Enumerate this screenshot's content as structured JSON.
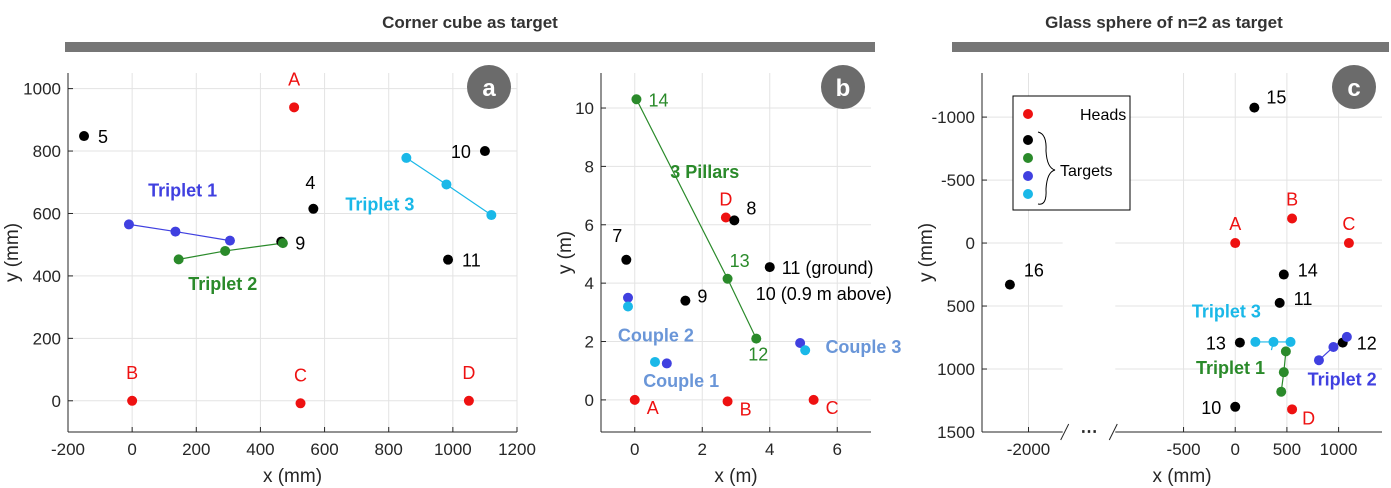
{
  "headers": {
    "left": "Corner cube as target",
    "right": "Glass sphere of n=2 as target"
  },
  "colors": {
    "red": "#ee1111",
    "black": "#000000",
    "green": "#2a8a2a",
    "blue": "#4040e0",
    "cyan": "#1ab8e8",
    "couple": "#6a96d8",
    "header_bar": "#767676",
    "badge": "#6b6b6b"
  },
  "chart_data": [
    {
      "type": "scatter",
      "panel": "a",
      "xlabel": "x (mm)",
      "ylabel": "y (mm)",
      "xlim": [
        -200,
        1200
      ],
      "ylim": [
        -100,
        1050
      ],
      "xticks": [
        -200,
        0,
        200,
        400,
        600,
        800,
        1000,
        1200
      ],
      "yticks": [
        0,
        200,
        400,
        600,
        800,
        1000
      ],
      "grid": true,
      "points": [
        {
          "label": "A",
          "x": 505,
          "y": 940,
          "color": "red",
          "lx": 0,
          "ly": -22,
          "anchor": "middle"
        },
        {
          "label": "B",
          "x": 0,
          "y": 0,
          "color": "red",
          "lx": 0,
          "ly": -22,
          "anchor": "middle"
        },
        {
          "label": "C",
          "x": 525,
          "y": -8,
          "color": "red",
          "lx": 0,
          "ly": -22,
          "anchor": "middle"
        },
        {
          "label": "D",
          "x": 1050,
          "y": 0,
          "color": "red",
          "lx": 0,
          "ly": -22,
          "anchor": "middle"
        },
        {
          "label": "5",
          "x": -150,
          "y": 848,
          "color": "black",
          "lx": 14,
          "ly": 7,
          "anchor": "start"
        },
        {
          "label": "4",
          "x": 565,
          "y": 615,
          "color": "black",
          "lx": -8,
          "ly": -20,
          "anchor": "start"
        },
        {
          "label": "9",
          "x": 465,
          "y": 510,
          "color": "black",
          "lx": 14,
          "ly": 8,
          "anchor": "start"
        },
        {
          "label": "10",
          "x": 1100,
          "y": 800,
          "color": "black",
          "lx": -14,
          "ly": 7,
          "anchor": "end"
        },
        {
          "label": "11",
          "x": 985,
          "y": 452,
          "color": "black",
          "lx": 14,
          "ly": 7,
          "anchor": "start"
        },
        {
          "label": "",
          "x": -10,
          "y": 565,
          "color": "blue"
        },
        {
          "label": "",
          "x": 135,
          "y": 542,
          "color": "blue"
        },
        {
          "label": "",
          "x": 305,
          "y": 513,
          "color": "blue"
        },
        {
          "label": "",
          "x": 145,
          "y": 453,
          "color": "green"
        },
        {
          "label": "",
          "x": 290,
          "y": 480,
          "color": "green"
        },
        {
          "label": "",
          "x": 470,
          "y": 505,
          "color": "green"
        },
        {
          "label": "",
          "x": 855,
          "y": 778,
          "color": "cyan"
        },
        {
          "label": "",
          "x": 980,
          "y": 693,
          "color": "cyan"
        },
        {
          "label": "",
          "x": 1120,
          "y": 595,
          "color": "cyan"
        }
      ],
      "lines": [
        {
          "color": "blue",
          "x": [
            -10,
            135,
            305
          ],
          "y": [
            565,
            542,
            513
          ]
        },
        {
          "color": "green",
          "x": [
            145,
            290,
            470
          ],
          "y": [
            453,
            480,
            505
          ]
        },
        {
          "color": "cyan",
          "x": [
            855,
            980,
            1120
          ],
          "y": [
            778,
            693,
            595
          ]
        }
      ],
      "annotations": [
        {
          "text": "Triplet 1",
          "x": 50,
          "y": 655,
          "color": "blue",
          "anchor": "start"
        },
        {
          "text": "Triplet 2",
          "x": 175,
          "y": 355,
          "color": "green",
          "anchor": "start"
        },
        {
          "text": "Triplet 3",
          "x": 665,
          "y": 610,
          "color": "cyan",
          "anchor": "start"
        }
      ]
    },
    {
      "type": "scatter",
      "panel": "b",
      "xlabel": "x (m)",
      "ylabel": "y (m)",
      "xlim": [
        -1,
        7
      ],
      "ylim": [
        -1.1,
        11.2
      ],
      "xticks": [
        0,
        2,
        4,
        6
      ],
      "yticks": [
        0,
        2,
        4,
        6,
        8,
        10
      ],
      "grid": true,
      "points": [
        {
          "label": "A",
          "x": 0,
          "y": 0,
          "color": "red",
          "lx": 12,
          "ly": 14,
          "anchor": "start"
        },
        {
          "label": "B",
          "x": 2.75,
          "y": -0.05,
          "color": "red",
          "lx": 12,
          "ly": 14,
          "anchor": "start"
        },
        {
          "label": "C",
          "x": 5.3,
          "y": 0,
          "color": "red",
          "lx": 12,
          "ly": 14,
          "anchor": "start"
        },
        {
          "label": "D",
          "x": 2.7,
          "y": 6.25,
          "color": "red",
          "lx": 0,
          "ly": -12,
          "anchor": "middle"
        },
        {
          "label": "7",
          "x": -0.25,
          "y": 4.8,
          "color": "black",
          "lx": -4,
          "ly": -18,
          "anchor": "end"
        },
        {
          "label": "8",
          "x": 2.95,
          "y": 6.15,
          "color": "black",
          "lx": 12,
          "ly": -6,
          "anchor": "start"
        },
        {
          "label": "9",
          "x": 1.5,
          "y": 3.4,
          "color": "black",
          "lx": 12,
          "ly": 2,
          "anchor": "start"
        },
        {
          "label": "11 (ground)",
          "x": 4,
          "y": 4.55,
          "color": "black",
          "lx": 12,
          "ly": 7,
          "anchor": "start"
        },
        {
          "label": "10 (0.9 m above)",
          "x": 4,
          "y": 4.55,
          "color": "black",
          "lx": -14,
          "ly": 33,
          "anchor": "start",
          "nodot": true
        },
        {
          "label": "14",
          "x": 0.05,
          "y": 10.3,
          "color": "green",
          "lx": 12,
          "ly": 7,
          "anchor": "start"
        },
        {
          "label": "13",
          "x": 2.75,
          "y": 4.15,
          "color": "green",
          "lx": 2,
          "ly": -12,
          "anchor": "start"
        },
        {
          "label": "12",
          "x": 3.6,
          "y": 2.1,
          "color": "green",
          "lx": -8,
          "ly": 22,
          "anchor": "start"
        },
        {
          "label": "",
          "x": -0.2,
          "y": 3.5,
          "color": "blue"
        },
        {
          "label": "",
          "x": -0.2,
          "y": 3.2,
          "color": "cyan"
        },
        {
          "label": "",
          "x": 0.6,
          "y": 1.3,
          "color": "cyan"
        },
        {
          "label": "",
          "x": 0.95,
          "y": 1.25,
          "color": "blue"
        },
        {
          "label": "",
          "x": 4.9,
          "y": 1.95,
          "color": "blue"
        },
        {
          "label": "",
          "x": 5.05,
          "y": 1.7,
          "color": "cyan"
        }
      ],
      "lines": [
        {
          "color": "green",
          "x": [
            0.05,
            2.75,
            3.6
          ],
          "y": [
            10.3,
            4.15,
            2.1
          ]
        }
      ],
      "annotations": [
        {
          "text": "3 Pillars",
          "x": 1.05,
          "y": 7.6,
          "color": "green",
          "anchor": "start"
        },
        {
          "text": "Couple 2",
          "x": -0.5,
          "y": 2.0,
          "color": "couple",
          "anchor": "start"
        },
        {
          "text": "Couple 1",
          "x": 0.25,
          "y": 0.45,
          "color": "couple",
          "anchor": "start"
        },
        {
          "text": "Couple 3",
          "x": 5.65,
          "y": 1.6,
          "color": "couple",
          "anchor": "start"
        }
      ]
    },
    {
      "type": "scatter",
      "panel": "c",
      "xlabel": "x (mm)",
      "ylabel": "y (mm)",
      "xlim": [
        -2450,
        1420
      ],
      "ylim": [
        -1350,
        1500
      ],
      "yreversed": true,
      "xticks": [
        -2000,
        -500,
        0,
        500,
        1000
      ],
      "yticks": [
        -1000,
        -500,
        0,
        500,
        1000,
        1500
      ],
      "ytick_labels": [
        "-1000",
        "-500",
        "0",
        "500",
        "1000",
        "1500"
      ],
      "axis_break_label": "⋯",
      "grid": true,
      "legend": {
        "placement": "top-left",
        "heads": "Heads",
        "targets": "Targets",
        "heads_color": "red",
        "target_colors": [
          "black",
          "green",
          "blue",
          "cyan"
        ]
      },
      "points": [
        {
          "label": "A",
          "x": 0,
          "y": 0,
          "color": "red",
          "lx": 0,
          "ly": -13,
          "anchor": "middle"
        },
        {
          "label": "B",
          "x": 550,
          "y": -195,
          "color": "red",
          "lx": 0,
          "ly": -13,
          "anchor": "middle"
        },
        {
          "label": "C",
          "x": 1100,
          "y": 0,
          "color": "red",
          "lx": 0,
          "ly": -13,
          "anchor": "middle"
        },
        {
          "label": "D",
          "x": 550,
          "y": 1320,
          "color": "red",
          "lx": 10,
          "ly": 15,
          "anchor": "start"
        },
        {
          "label": "15",
          "x": 185,
          "y": -1075,
          "color": "black",
          "lx": 12,
          "ly": -4,
          "anchor": "start"
        },
        {
          "label": "14",
          "x": 470,
          "y": 250,
          "color": "black",
          "lx": 14,
          "ly": 2,
          "anchor": "start"
        },
        {
          "label": "11",
          "x": 430,
          "y": 475,
          "color": "black",
          "lx": 14,
          "ly": 2,
          "anchor": "start"
        },
        {
          "label": "13",
          "x": 45,
          "y": 790,
          "color": "black",
          "lx": -14,
          "ly": 7,
          "anchor": "end"
        },
        {
          "label": "12",
          "x": 1040,
          "y": 790,
          "color": "black",
          "lx": 14,
          "ly": 7,
          "anchor": "start"
        },
        {
          "label": "10",
          "x": 0,
          "y": 1300,
          "color": "black",
          "lx": -14,
          "ly": 7,
          "anchor": "end"
        },
        {
          "label": "16",
          "x": -2180,
          "y": 330,
          "color": "black",
          "lx": 14,
          "ly": -8,
          "anchor": "start"
        },
        {
          "label": "",
          "x": 195,
          "y": 785,
          "color": "cyan"
        },
        {
          "label": "",
          "x": 370,
          "y": 785,
          "color": "cyan"
        },
        {
          "label": "",
          "x": 535,
          "y": 785,
          "color": "cyan"
        },
        {
          "label": "",
          "x": 490,
          "y": 860,
          "color": "green"
        },
        {
          "label": "",
          "x": 470,
          "y": 1025,
          "color": "green"
        },
        {
          "label": "",
          "x": 445,
          "y": 1180,
          "color": "green"
        },
        {
          "label": "",
          "x": 1080,
          "y": 745,
          "color": "blue"
        },
        {
          "label": "",
          "x": 950,
          "y": 825,
          "color": "blue"
        },
        {
          "label": "",
          "x": 810,
          "y": 930,
          "color": "blue"
        }
      ],
      "lines": [
        {
          "color": "cyan",
          "x": [
            195,
            370,
            535
          ],
          "y": [
            785,
            785,
            785
          ]
        },
        {
          "color": "cyan",
          "x": [
            370,
            350
          ],
          "y": [
            785,
            850
          ]
        },
        {
          "color": "green",
          "x": [
            490,
            470,
            445
          ],
          "y": [
            860,
            1025,
            1180
          ]
        },
        {
          "color": "blue",
          "x": [
            1080,
            950,
            810
          ],
          "y": [
            745,
            825,
            930
          ]
        }
      ],
      "annotations": [
        {
          "text": "Triplet 3",
          "x": -420,
          "y": 590,
          "color": "cyan",
          "anchor": "start"
        },
        {
          "text": "Triplet 1",
          "x": -380,
          "y": 1040,
          "color": "green",
          "anchor": "start"
        },
        {
          "text": "Triplet 2",
          "x": 700,
          "y": 1130,
          "color": "blue",
          "anchor": "start"
        }
      ]
    }
  ]
}
